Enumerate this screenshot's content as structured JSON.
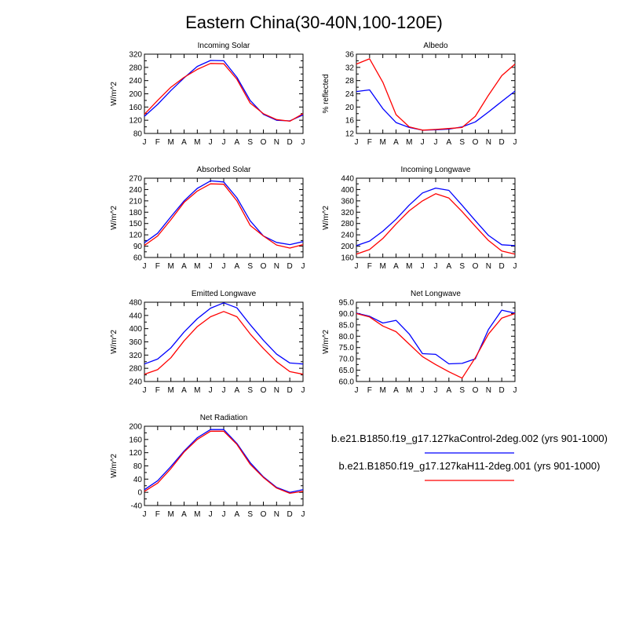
{
  "title": "Eastern China(30-40N,100-120E)",
  "months": [
    "J",
    "F",
    "M",
    "A",
    "M",
    "J",
    "J",
    "A",
    "S",
    "O",
    "N",
    "D",
    "J"
  ],
  "legend": [
    {
      "label": "b.e21.B1850.f19_g17.127kaControl-2deg.002 (yrs 901-1000)",
      "color": "#0000ff"
    },
    {
      "label": "b.e21.B1850.f19_g17.127kaH11-2deg.001 (yrs 901-1000)",
      "color": "#ff0000"
    }
  ],
  "colors": {
    "control": "#0000ff",
    "h11": "#ff0000"
  },
  "chart_data": [
    {
      "type": "line",
      "title": "Incoming Solar",
      "ylabel": "W/m^2",
      "ylim": [
        80,
        320
      ],
      "yticks": [
        "80",
        "120",
        "160",
        "200",
        "240",
        "280",
        "320"
      ],
      "categories": [
        "J",
        "F",
        "M",
        "A",
        "M",
        "J",
        "J",
        "A",
        "S",
        "O",
        "N",
        "D",
        "J"
      ],
      "series": [
        {
          "name": "b.e21.B1850.f19_g17.127kaControl-2deg.002 (yrs 901-1000)",
          "color": "#0000ff",
          "values": [
            132,
            168,
            210,
            248,
            283,
            301,
            300,
            250,
            180,
            138,
            120,
            118,
            136
          ]
        },
        {
          "name": "b.e21.B1850.f19_g17.127kaH11-2deg.001 (yrs 901-1000)",
          "color": "#ff0000",
          "values": [
            138,
            180,
            220,
            250,
            274,
            292,
            291,
            244,
            172,
            140,
            122,
            117,
            140
          ]
        }
      ]
    },
    {
      "type": "line",
      "title": "Albedo",
      "ylabel": "% reflected",
      "ylim": [
        12,
        36
      ],
      "yticks": [
        "12",
        "16",
        "20",
        "24",
        "28",
        "32",
        "36"
      ],
      "categories": [
        "J",
        "F",
        "M",
        "A",
        "M",
        "J",
        "J",
        "A",
        "S",
        "O",
        "N",
        "D",
        "J"
      ],
      "series": [
        {
          "name": "b.e21.B1850.f19_g17.127kaControl-2deg.002 (yrs 901-1000)",
          "color": "#0000ff",
          "values": [
            24.7,
            25.2,
            19.5,
            15.3,
            13.8,
            13.0,
            13.1,
            13.3,
            14.0,
            15.5,
            18.5,
            21.7,
            24.8
          ]
        },
        {
          "name": "b.e21.B1850.f19_g17.127kaH11-2deg.001 (yrs 901-1000)",
          "color": "#ff0000",
          "values": [
            33.0,
            34.6,
            27.5,
            17.7,
            14.0,
            13.0,
            13.2,
            13.5,
            13.8,
            17.2,
            23.6,
            29.5,
            33.0
          ]
        }
      ]
    },
    {
      "type": "line",
      "title": "Absorbed Solar",
      "ylabel": "W/m^2",
      "ylim": [
        60,
        270
      ],
      "yticks": [
        "60",
        "90",
        "120",
        "150",
        "180",
        "210",
        "240",
        "270"
      ],
      "categories": [
        "J",
        "F",
        "M",
        "A",
        "M",
        "J",
        "J",
        "A",
        "S",
        "O",
        "N",
        "D",
        "J"
      ],
      "series": [
        {
          "name": "b.e21.B1850.f19_g17.127kaControl-2deg.002 (yrs 901-1000)",
          "color": "#0000ff",
          "values": [
            99,
            124,
            168,
            210,
            243,
            263,
            260,
            218,
            157,
            117,
            100,
            94,
            102
          ]
        },
        {
          "name": "b.e21.B1850.f19_g17.127kaH11-2deg.001 (yrs 901-1000)",
          "color": "#ff0000",
          "values": [
            92,
            117,
            160,
            206,
            236,
            255,
            254,
            210,
            145,
            117,
            93,
            85,
            94
          ]
        }
      ]
    },
    {
      "type": "line",
      "title": "Incoming Longwave",
      "ylabel": "W/m^2",
      "ylim": [
        160,
        440
      ],
      "yticks": [
        "160",
        "200",
        "240",
        "280",
        "320",
        "360",
        "400",
        "440"
      ],
      "categories": [
        "J",
        "F",
        "M",
        "A",
        "M",
        "J",
        "J",
        "A",
        "S",
        "O",
        "N",
        "D",
        "J"
      ],
      "series": [
        {
          "name": "b.e21.B1850.f19_g17.127kaControl-2deg.002 (yrs 901-1000)",
          "color": "#0000ff",
          "values": [
            202,
            218,
            253,
            295,
            345,
            388,
            405,
            397,
            344,
            290,
            238,
            205,
            202
          ]
        },
        {
          "name": "b.e21.B1850.f19_g17.127kaH11-2deg.001 (yrs 901-1000)",
          "color": "#ff0000",
          "values": [
            172,
            188,
            227,
            278,
            325,
            360,
            385,
            370,
            322,
            270,
            220,
            183,
            172
          ]
        }
      ]
    },
    {
      "type": "line",
      "title": "Emitted Longwave",
      "ylabel": "W/m^2",
      "ylim": [
        240,
        480
      ],
      "yticks": [
        "240",
        "280",
        "320",
        "360",
        "400",
        "440",
        "480"
      ],
      "categories": [
        "J",
        "F",
        "M",
        "A",
        "M",
        "J",
        "J",
        "A",
        "S",
        "O",
        "N",
        "D",
        "J"
      ],
      "series": [
        {
          "name": "b.e21.B1850.f19_g17.127kaControl-2deg.002 (yrs 901-1000)",
          "color": "#0000ff",
          "values": [
            293,
            308,
            342,
            390,
            430,
            462,
            478,
            463,
            412,
            365,
            323,
            296,
            293
          ]
        },
        {
          "name": "b.e21.B1850.f19_g17.127kaH11-2deg.001 (yrs 901-1000)",
          "color": "#ff0000",
          "values": [
            262,
            276,
            312,
            363,
            406,
            436,
            452,
            436,
            384,
            340,
            300,
            270,
            262
          ]
        }
      ]
    },
    {
      "type": "line",
      "title": "Net Longwave",
      "ylabel": "W/m^2",
      "ylim": [
        60.0,
        95.0
      ],
      "yticks": [
        "60.0",
        "65.0",
        "70.0",
        "75.0",
        "80.0",
        "85.0",
        "90.0",
        "95.0"
      ],
      "categories": [
        "J",
        "F",
        "M",
        "A",
        "M",
        "J",
        "J",
        "A",
        "S",
        "O",
        "N",
        "D",
        "J"
      ],
      "series": [
        {
          "name": "b.e21.B1850.f19_g17.127kaControl-2deg.002 (yrs 901-1000)",
          "color": "#0000ff",
          "values": [
            90.2,
            88.8,
            85.8,
            87.0,
            81.0,
            72.3,
            72.0,
            67.8,
            68.0,
            70.0,
            83.0,
            91.5,
            90.2
          ]
        },
        {
          "name": "b.e21.B1850.f19_g17.127kaH11-2deg.001 (yrs 901-1000)",
          "color": "#ff0000",
          "values": [
            90.0,
            88.5,
            84.5,
            82.0,
            76.5,
            71.0,
            67.5,
            64.3,
            61.5,
            70.5,
            81.0,
            88.0,
            90.0
          ]
        }
      ]
    },
    {
      "type": "line",
      "title": "Net Radiation",
      "ylabel": "W/m^2",
      "ylim": [
        -40,
        200
      ],
      "yticks": [
        "-40",
        "0",
        "40",
        "80",
        "120",
        "160",
        "200"
      ],
      "categories": [
        "J",
        "F",
        "M",
        "A",
        "M",
        "J",
        "J",
        "A",
        "S",
        "O",
        "N",
        "D",
        "J"
      ],
      "series": [
        {
          "name": "b.e21.B1850.f19_g17.127kaControl-2deg.002 (yrs 901-1000)",
          "color": "#0000ff",
          "values": [
            8,
            35,
            78,
            125,
            165,
            190,
            190,
            148,
            90,
            47,
            15,
            0,
            8
          ]
        },
        {
          "name": "b.e21.B1850.f19_g17.127kaH11-2deg.001 (yrs 901-1000)",
          "color": "#ff0000",
          "values": [
            3,
            28,
            72,
            122,
            160,
            185,
            185,
            145,
            85,
            45,
            13,
            -3,
            3
          ]
        }
      ]
    }
  ]
}
